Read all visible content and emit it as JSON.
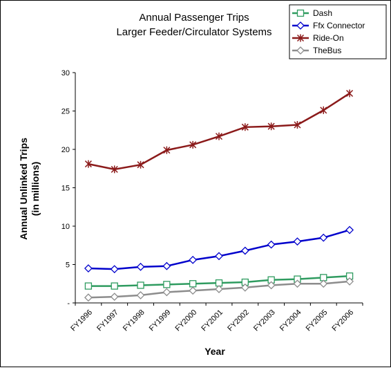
{
  "chart_data": {
    "type": "line",
    "title": "Annual Passenger Trips",
    "subtitle": "Larger Feeder/Circulator Systems",
    "xlabel": "Year",
    "ylabel": "Annual Unlinked Trips",
    "ylabel_sub": "(in millions)",
    "categories": [
      "FY1996",
      "FY1997",
      "FY1998",
      "FY1999",
      "FY2000",
      "FY2001",
      "FY2002",
      "FY2003",
      "FY2004",
      "FY2005",
      "FY2006"
    ],
    "ylim": [
      0,
      30
    ],
    "yticks": [
      {
        "value": 0,
        "label": "-"
      },
      {
        "value": 5,
        "label": "5"
      },
      {
        "value": 10,
        "label": "10"
      },
      {
        "value": 15,
        "label": "15"
      },
      {
        "value": 20,
        "label": "20"
      },
      {
        "value": 25,
        "label": "25"
      },
      {
        "value": 30,
        "label": "30"
      }
    ],
    "grid": false,
    "legend_position": "top-right",
    "series": [
      {
        "name": "Dash",
        "color": "#2e9b5f",
        "marker": "square",
        "values": [
          2.2,
          2.2,
          2.3,
          2.4,
          2.5,
          2.6,
          2.7,
          3.0,
          3.1,
          3.3,
          3.5
        ]
      },
      {
        "name": "Ffx Connector",
        "color": "#0000cc",
        "marker": "diamond",
        "values": [
          4.5,
          4.4,
          4.7,
          4.8,
          5.6,
          6.1,
          6.8,
          7.6,
          8.0,
          8.5,
          9.5
        ]
      },
      {
        "name": "Ride-On",
        "color": "#8b1a1a",
        "marker": "star",
        "values": [
          18.1,
          17.4,
          18.0,
          19.9,
          20.6,
          21.7,
          22.9,
          23.0,
          23.2,
          25.1,
          27.3
        ]
      },
      {
        "name": "TheBus",
        "color": "#8c8c8c",
        "marker": "diamond",
        "values": [
          0.7,
          0.8,
          1.0,
          1.4,
          1.6,
          1.8,
          2.0,
          2.3,
          2.5,
          2.5,
          2.8
        ]
      }
    ]
  }
}
